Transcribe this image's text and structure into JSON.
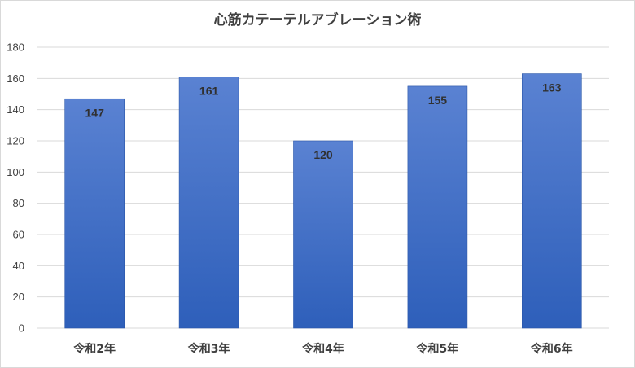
{
  "chart_data": {
    "type": "bar",
    "title": "心筋カテーテルアブレーション術",
    "categories": [
      "令和2年",
      "令和3年",
      "令和4年",
      "令和5年",
      "令和6年"
    ],
    "values": [
      147,
      161,
      120,
      155,
      163
    ],
    "ylim": [
      0,
      180
    ],
    "yticks": [
      0,
      20,
      40,
      60,
      80,
      100,
      120,
      140,
      160,
      180
    ],
    "grid": true,
    "legend": "none",
    "colors": {
      "bar_top": "#5a82d2",
      "bar_bottom": "#2e5fba",
      "grid": "#d9d9d9"
    }
  }
}
